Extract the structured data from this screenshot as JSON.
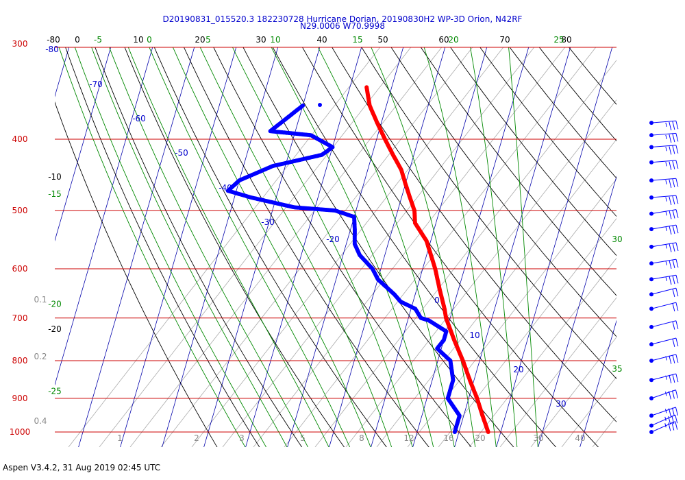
{
  "chart_data": {
    "type": "skew-t",
    "title_line1": "D20190831_015520.3 182230728 Hurricane Dorian, 20190830H2 WP-3D Orion, N42RF",
    "title_line2": "N29.0006 W70.9998",
    "pressure_labels": [
      "300",
      "400",
      "500",
      "600",
      "700",
      "800",
      "900",
      "1000"
    ],
    "pressure_levels": [
      300,
      400,
      500,
      600,
      700,
      800,
      900,
      1000
    ],
    "temp_top_labels": [
      "-80",
      "0",
      "10",
      "20",
      "30",
      "40",
      "50",
      "60",
      "70",
      "80"
    ],
    "green_top_labels": [
      "-5",
      "0",
      "5",
      "10",
      "15",
      "20",
      "25"
    ],
    "dry_adiabat_labels": [
      {
        "text": "-10",
        "p": 450
      },
      {
        "text": "-20",
        "p": 725
      }
    ],
    "moist_adiabat_left_labels": [
      {
        "text": "-15",
        "p": 475
      },
      {
        "text": "-20",
        "p": 670
      },
      {
        "text": "-25",
        "p": 880
      }
    ],
    "moist_adiabat_right_labels": [
      "30",
      "35"
    ],
    "isotherm_labels": [
      "-80",
      "-70",
      "-60",
      "-50",
      "-40",
      "-30",
      "-20",
      "0",
      "10",
      "20",
      "30"
    ],
    "mixing_ratio_labels": [
      "0.1",
      "0.2",
      "0.4",
      "1",
      "2",
      "3",
      "5",
      "8",
      "12",
      "16",
      "20",
      "30",
      "40"
    ],
    "colors": {
      "temperature": "#ff0000",
      "dewpoint": "#0000ff",
      "isobar": "#cc0000",
      "isotherm": "#0000aa",
      "dry_adiabat": "#000000",
      "moist_adiabat": "#008800",
      "mixing_ratio": "#999999",
      "wind": "#0000ff"
    },
    "temperature_profile": [
      {
        "p": 340,
        "t": -26
      },
      {
        "p": 360,
        "t": -24
      },
      {
        "p": 380,
        "t": -21
      },
      {
        "p": 400,
        "t": -18
      },
      {
        "p": 420,
        "t": -15
      },
      {
        "p": 440,
        "t": -12
      },
      {
        "p": 460,
        "t": -10
      },
      {
        "p": 480,
        "t": -8
      },
      {
        "p": 500,
        "t": -6
      },
      {
        "p": 520,
        "t": -5
      },
      {
        "p": 550,
        "t": -1
      },
      {
        "p": 600,
        "t": 3
      },
      {
        "p": 640,
        "t": 5.5
      },
      {
        "p": 680,
        "t": 8
      },
      {
        "p": 700,
        "t": 9
      },
      {
        "p": 750,
        "t": 12.5
      },
      {
        "p": 800,
        "t": 16
      },
      {
        "p": 850,
        "t": 19
      },
      {
        "p": 900,
        "t": 22
      },
      {
        "p": 950,
        "t": 24.5
      },
      {
        "p": 1000,
        "t": 27
      }
    ],
    "dewpoint_profile": [
      {
        "p": 360,
        "t": -40
      },
      {
        "p": 390,
        "t": -46
      },
      {
        "p": 395,
        "t": -36
      },
      {
        "p": 410,
        "t": -30
      },
      {
        "p": 420,
        "t": -32
      },
      {
        "p": 435,
        "t": -43
      },
      {
        "p": 455,
        "t": -50
      },
      {
        "p": 470,
        "t": -52
      },
      {
        "p": 480,
        "t": -46
      },
      {
        "p": 495,
        "t": -35
      },
      {
        "p": 500,
        "t": -25
      },
      {
        "p": 510,
        "t": -20
      },
      {
        "p": 530,
        "t": -19
      },
      {
        "p": 555,
        "t": -18
      },
      {
        "p": 575,
        "t": -16
      },
      {
        "p": 600,
        "t": -12
      },
      {
        "p": 620,
        "t": -10
      },
      {
        "p": 650,
        "t": -5
      },
      {
        "p": 665,
        "t": -3
      },
      {
        "p": 680,
        "t": 1
      },
      {
        "p": 700,
        "t": 3
      },
      {
        "p": 705,
        "t": 5
      },
      {
        "p": 730,
        "t": 10
      },
      {
        "p": 750,
        "t": 10
      },
      {
        "p": 770,
        "t": 9
      },
      {
        "p": 800,
        "t": 13
      },
      {
        "p": 850,
        "t": 15
      },
      {
        "p": 900,
        "t": 15
      },
      {
        "p": 950,
        "t": 19
      },
      {
        "p": 1000,
        "t": 19
      }
    ],
    "wind_barbs": [
      {
        "p": 380,
        "dir": 265,
        "spd": 25
      },
      {
        "p": 395,
        "dir": 265,
        "spd": 25
      },
      {
        "p": 410,
        "dir": 265,
        "spd": 25
      },
      {
        "p": 430,
        "dir": 265,
        "spd": 25
      },
      {
        "p": 455,
        "dir": 265,
        "spd": 25
      },
      {
        "p": 480,
        "dir": 265,
        "spd": 25
      },
      {
        "p": 505,
        "dir": 270,
        "spd": 25
      },
      {
        "p": 530,
        "dir": 270,
        "spd": 25
      },
      {
        "p": 560,
        "dir": 270,
        "spd": 25
      },
      {
        "p": 590,
        "dir": 270,
        "spd": 25
      },
      {
        "p": 620,
        "dir": 270,
        "spd": 25
      },
      {
        "p": 650,
        "dir": 275,
        "spd": 20
      },
      {
        "p": 680,
        "dir": 275,
        "spd": 20
      },
      {
        "p": 720,
        "dir": 275,
        "spd": 20
      },
      {
        "p": 760,
        "dir": 275,
        "spd": 20
      },
      {
        "p": 800,
        "dir": 275,
        "spd": 25
      },
      {
        "p": 850,
        "dir": 275,
        "spd": 25
      },
      {
        "p": 900,
        "dir": 280,
        "spd": 25
      },
      {
        "p": 950,
        "dir": 280,
        "spd": 25
      },
      {
        "p": 980,
        "dir": 285,
        "spd": 25
      },
      {
        "p": 1000,
        "dir": 285,
        "spd": 25
      }
    ]
  },
  "footer": "Aspen V3.4.2, 31 Aug 2019  02:45 UTC"
}
